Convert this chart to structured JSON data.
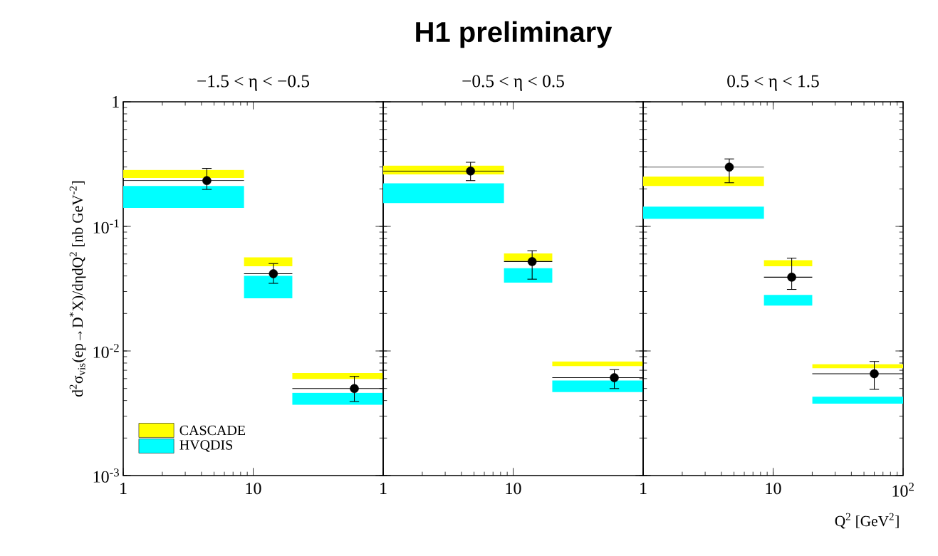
{
  "chart_data": [
    {
      "type": "scatter",
      "subtitle": "−1.5 < η < −0.5",
      "ylabel": "d$^{2}$σ$_{vis}$(ep→D$^{*}$X)/dηdQ$^{2}$ [nb GeV$^{-2}$]",
      "log": "xy",
      "legend": "bottom left",
      "xlim": [
        1,
        100
      ],
      "ylim": [
        0.001,
        1
      ],
      "xticks": [
        1,
        10
      ],
      "yticks": [
        {
          "value": 0.001,
          "label": "10$^{-3}$"
        },
        {
          "value": 0.01,
          "label": "10$^{-2}$"
        },
        {
          "value": 0.1,
          "label": "10$^{-1}$"
        },
        1
      ],
      "x": [
        4.4,
        14.3,
        60
      ],
      "series": [
        {
          "name": "CASCADE",
          "type": "bar",
          "color": "#ffff00",
          "base": [
            0.245,
            0.0479,
            0.00594
          ],
          "values": [
            0.039,
            0.0085,
            0.00071
          ]
        },
        {
          "name": "HVQDIS",
          "type": "bar",
          "color": "#00ffff",
          "base": [
            0.141,
            0.0265,
            0.00369
          ],
          "values": [
            0.07,
            0.0136,
            0.00093
          ]
        },
        {
          "color": "#000000",
          "values": [
            0.233,
            0.0417,
            0.00499
          ],
          "errors": [
            [
              0.198,
              0.292
            ],
            [
              0.0349,
              0.0503
            ],
            [
              0.00393,
              0.00625
            ]
          ],
          "xerrors": [
            [
              1,
              8.5
            ],
            [
              8.5,
              20
            ],
            [
              20,
              100
            ]
          ]
        }
      ]
    },
    {
      "type": "scatter",
      "title": "H1 preliminary",
      "subtitle": "−0.5 < η < 0.5",
      "log": "xy",
      "tick_labels": "x",
      "xlim": [
        1,
        100
      ],
      "ylim": [
        0.001,
        1
      ],
      "xticks": [
        1,
        10
      ],
      "yticks": [
        {
          "value": 0.001,
          "label": null
        },
        {
          "value": 0.01,
          "label": null
        },
        {
          "value": 0.1,
          "label": null
        },
        {
          "value": 1,
          "label": null
        }
      ],
      "x": [
        4.7,
        14,
        60
      ],
      "series": [
        {
          "type": "bar",
          "color": "#ffff00",
          "base": [
            0.261,
            0.0529,
            0.00755
          ],
          "values": [
            0.046,
            0.0078,
            0.00069
          ]
        },
        {
          "type": "bar",
          "color": "#00ffff",
          "base": [
            0.154,
            0.0354,
            0.00468
          ],
          "values": [
            0.068,
            0.0107,
            0.00112
          ]
        },
        {
          "color": "#000000",
          "values": [
            0.278,
            0.0522,
            0.0061
          ],
          "errors": [
            [
              0.233,
              0.327
            ],
            [
              0.0377,
              0.0638
            ],
            [
              0.00499,
              0.00708
            ]
          ],
          "xerrors": [
            [
              1,
              8.5
            ],
            [
              8.5,
              20
            ],
            [
              20,
              100
            ]
          ]
        }
      ]
    },
    {
      "type": "scatter",
      "subtitle": "0.5 < η < 1.5",
      "xlabel": "Q$^{2}$ [GeV$^{2}$]",
      "log": "xy",
      "tick_labels": "x",
      "xlim": [
        1,
        100
      ],
      "ylim": [
        0.001,
        1
      ],
      "xticks": [
        1,
        10,
        {
          "value": 100,
          "label": "10$^{2}$"
        }
      ],
      "yticks": [
        {
          "value": 0.001,
          "label": null
        },
        {
          "value": 0.01,
          "label": null
        },
        {
          "value": 0.1,
          "label": null
        },
        {
          "value": 1,
          "label": null
        }
      ],
      "x": [
        4.6,
        13.9,
        60
      ],
      "series": [
        {
          "type": "bar",
          "color": "#ffff00",
          "base": [
            0.211,
            0.0479,
            0.00727
          ],
          "values": [
            0.04,
            0.0056,
            0.00057
          ]
        },
        {
          "type": "bar",
          "color": "#00ffff",
          "base": [
            0.115,
            0.0231,
            0.00378
          ],
          "values": [
            0.029,
            0.0051,
            0.00051
          ]
        },
        {
          "color": "#000000",
          "values": [
            0.299,
            0.0391,
            0.00657
          ],
          "errors": [
            [
              0.224,
              0.348
            ],
            [
              0.0312,
              0.0556
            ],
            [
              0.00492,
              0.00824
            ]
          ],
          "xerrors": [
            [
              1,
              8.5
            ],
            [
              8.5,
              20
            ],
            [
              20,
              100
            ]
          ]
        }
      ]
    }
  ]
}
